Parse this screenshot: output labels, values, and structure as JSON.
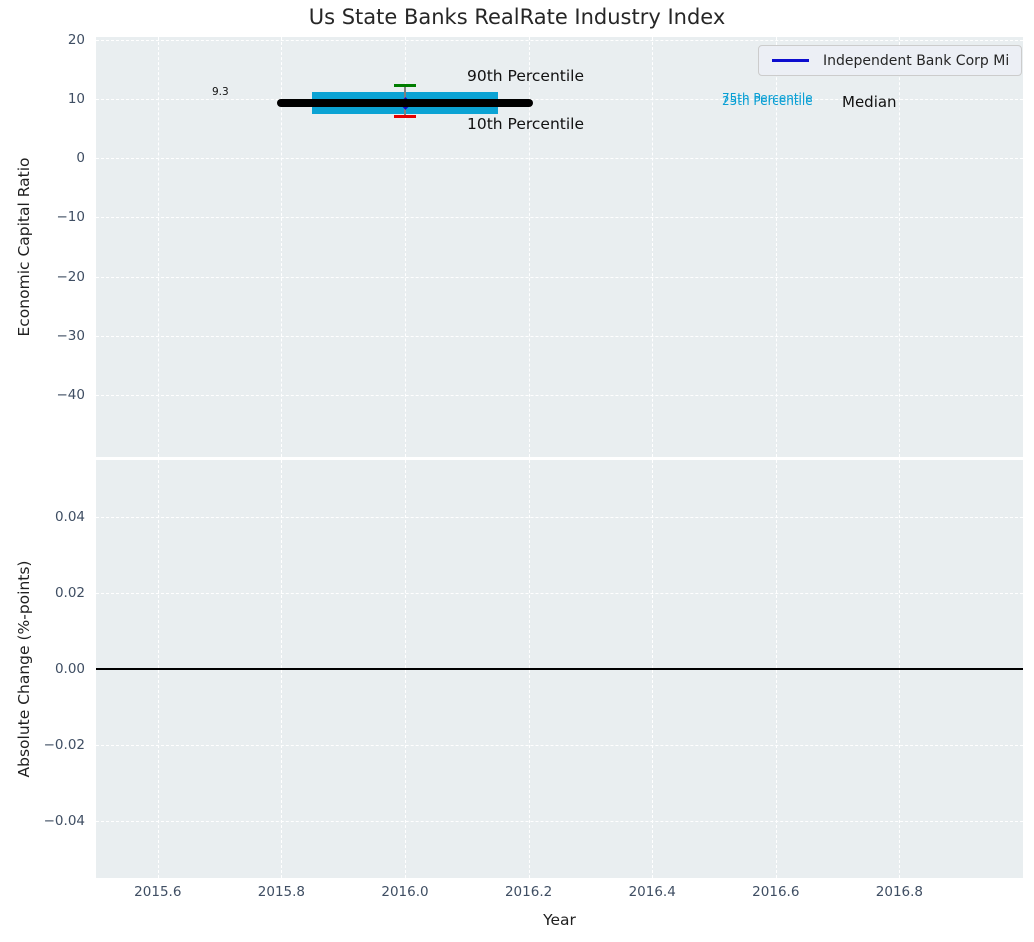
{
  "title": "Us State Banks RealRate Industry Index",
  "annotations": {
    "p90": "90th Percentile",
    "p10": "10th Percentile",
    "p75": "75th Percentile",
    "p25": "25th Percentile",
    "median": "Median",
    "median_value": "9.3"
  },
  "legend": {
    "position": "upper right",
    "entries": [
      {
        "label": "Independent Bank Corp Mi",
        "color": "#0d0dcf"
      }
    ]
  },
  "colors": {
    "axes_background": "#e9eef0",
    "grid": "#ffffff",
    "tick_labels": "#3f4e63",
    "axis_labels": "#1f1f1f",
    "title": "#262626",
    "iqr_band": "#0ba3d4",
    "median_line": "#000000",
    "p90_cap": "#007d00",
    "p10_cap": "#e60000",
    "whisker": "#808080",
    "company_marker": "#0d0dcf",
    "percentile_text": "#0a9fd4",
    "zero_line": "#000000"
  },
  "chart_data": {
    "type": "percentile_summary",
    "title": "Us State Banks RealRate Industry Index",
    "xlabel": "Year",
    "xlim": [
      2015.5,
      2017.0
    ],
    "xticks": {
      "values": [
        2015.6,
        2015.8,
        2016.0,
        2016.2,
        2016.4,
        2016.6,
        2016.8
      ],
      "labels": [
        "2015.6",
        "2015.8",
        "2016.0",
        "2016.2",
        "2016.4",
        "2016.6",
        "2016.8"
      ]
    },
    "grid": "white dashed, on major ticks",
    "subplots": [
      {
        "name": "economic-capital-ratio",
        "ylabel": "Economic Capital Ratio",
        "ylim": [
          -50.5,
          20.5
        ],
        "yticks": {
          "values": [
            20,
            10,
            0,
            -10,
            -20,
            -30,
            -40
          ],
          "labels": [
            "20",
            "10",
            "0",
            "−10",
            "−20",
            "−30",
            "−40"
          ]
        },
        "marks": {
          "median_line": {
            "x_start": 2015.8,
            "x_end": 2016.2,
            "value": 9.3
          },
          "iqr_band": {
            "x_start": 2015.85,
            "x_end": 2016.15,
            "p25": 7.5,
            "p75": 11.2
          },
          "whisker": {
            "x": 2016.0,
            "p10": 7.0,
            "p90": 12.3
          },
          "company_marker": {
            "x": 2016.0,
            "value": 9.2
          }
        }
      },
      {
        "name": "absolute-change",
        "ylabel": "Absolute Change (%-points)",
        "ylim": [
          -0.055,
          0.055
        ],
        "yticks": {
          "values": [
            0.04,
            0.02,
            0.0,
            -0.02,
            -0.04
          ],
          "labels": [
            "0.04",
            "0.02",
            "0.00",
            "−0.02",
            "−0.04"
          ]
        },
        "marks": {
          "zero_line": {
            "value": 0.0
          }
        }
      }
    ]
  }
}
